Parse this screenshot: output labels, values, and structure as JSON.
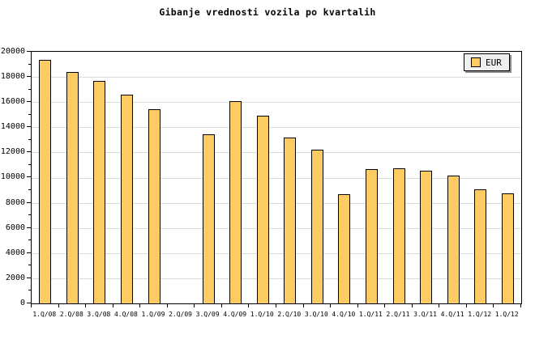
{
  "chart_data": {
    "type": "bar",
    "title": "Gibanje vrednosti vozila po kvartalih",
    "categories": [
      "1.Q/08",
      "2.Q/08",
      "3.Q/08",
      "4.Q/08",
      "1.Q/09",
      "2.Q/09",
      "3.Q/09",
      "4.Q/09",
      "1.Q/10",
      "2.Q/10",
      "3.Q/10",
      "4.Q/10",
      "1.Q/11",
      "2.Q/11",
      "3.Q/11",
      "4.Q/11",
      "1.Q/12",
      "1.Q/12"
    ],
    "series": [
      {
        "name": "EUR",
        "values": [
          19300,
          18300,
          17600,
          16500,
          15350,
          null,
          13400,
          16000,
          14850,
          13150,
          12150,
          8600,
          10600,
          10650,
          10500,
          10100,
          9000,
          8700
        ]
      }
    ],
    "xlabel": "",
    "ylabel": "",
    "ylim": [
      0,
      20000
    ],
    "y_major_step": 2000,
    "y_minor_step": 1000,
    "grid": "horizontal-major-only",
    "legend_position": "top-right",
    "colors": {
      "background": "#FFFFFF",
      "text": "#000000",
      "axis": "#000000",
      "gridline": "#DCDCDC",
      "bar_fill": "#FCCB62",
      "bar_border": "#000000",
      "legend_bg": "#EFEFEF",
      "legend_shadow": "#888888"
    }
  }
}
